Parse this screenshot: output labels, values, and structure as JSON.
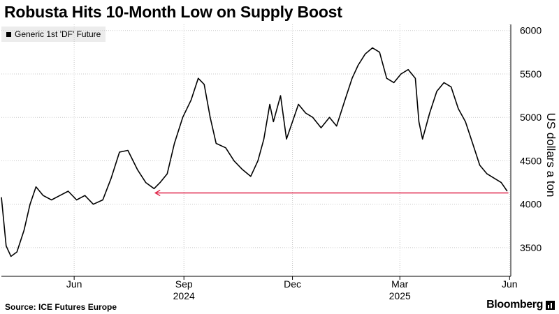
{
  "header": {
    "title": "Robusta Hits 10-Month Low on Supply Boost"
  },
  "footer": {
    "source": "Source: ICE Futures Europe",
    "brand": "Bloomberg",
    "brand_icon": "bloomberg-bars-icon"
  },
  "colors": {
    "price": "#000000",
    "grid": "#c8c8c8",
    "annotation": "#e0274a"
  },
  "chart_data": {
    "type": "line",
    "title": "Robusta Hits 10-Month Low on Supply Boost",
    "ylabel": "US dollars a ton",
    "legend": {
      "placement": "top-left",
      "entries": [
        "Generic 1st 'DF' Future"
      ]
    },
    "ylim": [
      3170,
      6070
    ],
    "xlim": [
      "2024-04-01",
      "2025-06-02"
    ],
    "y_ticks": [
      3500,
      4000,
      4500,
      5000,
      5500,
      6000
    ],
    "x_ticks": [
      {
        "date": "2024-06-01",
        "label": "Jun"
      },
      {
        "date": "2024-09-01",
        "label": "Sep"
      },
      {
        "date": "2024-12-01",
        "label": "Dec"
      },
      {
        "date": "2025-03-01",
        "label": "Mar"
      },
      {
        "date": "2025-06-01",
        "label": "Jun"
      }
    ],
    "year_labels": [
      {
        "date": "2024-09-01",
        "label": "2024"
      },
      {
        "date": "2025-03-01",
        "label": "2025"
      }
    ],
    "grid": true,
    "series": [
      {
        "name": "Generic 1st 'DF' Future",
        "points": [
          [
            "2024-04-01",
            4080
          ],
          [
            "2024-04-05",
            3520
          ],
          [
            "2024-04-09",
            3400
          ],
          [
            "2024-04-14",
            3450
          ],
          [
            "2024-04-20",
            3700
          ],
          [
            "2024-04-25",
            4000
          ],
          [
            "2024-04-30",
            4200
          ],
          [
            "2024-05-06",
            4100
          ],
          [
            "2024-05-13",
            4050
          ],
          [
            "2024-05-20",
            4100
          ],
          [
            "2024-05-27",
            4150
          ],
          [
            "2024-06-03",
            4050
          ],
          [
            "2024-06-10",
            4100
          ],
          [
            "2024-06-17",
            4000
          ],
          [
            "2024-06-25",
            4050
          ],
          [
            "2024-07-02",
            4300
          ],
          [
            "2024-07-09",
            4600
          ],
          [
            "2024-07-16",
            4620
          ],
          [
            "2024-07-24",
            4400
          ],
          [
            "2024-07-31",
            4250
          ],
          [
            "2024-08-07",
            4180
          ],
          [
            "2024-08-12",
            4250
          ],
          [
            "2024-08-18",
            4350
          ],
          [
            "2024-08-24",
            4700
          ],
          [
            "2024-08-31",
            5000
          ],
          [
            "2024-09-07",
            5200
          ],
          [
            "2024-09-13",
            5450
          ],
          [
            "2024-09-18",
            5380
          ],
          [
            "2024-09-23",
            5000
          ],
          [
            "2024-09-28",
            4700
          ],
          [
            "2024-10-06",
            4650
          ],
          [
            "2024-10-13",
            4500
          ],
          [
            "2024-10-20",
            4400
          ],
          [
            "2024-10-27",
            4320
          ],
          [
            "2024-11-02",
            4500
          ],
          [
            "2024-11-07",
            4750
          ],
          [
            "2024-11-12",
            5150
          ],
          [
            "2024-11-15",
            4950
          ],
          [
            "2024-11-21",
            5250
          ],
          [
            "2024-11-26",
            4750
          ],
          [
            "2024-12-01",
            4950
          ],
          [
            "2024-12-06",
            5150
          ],
          [
            "2024-12-12",
            5050
          ],
          [
            "2024-12-18",
            5000
          ],
          [
            "2024-12-25",
            4880
          ],
          [
            "2025-01-01",
            5000
          ],
          [
            "2025-01-07",
            4900
          ],
          [
            "2025-01-14",
            5200
          ],
          [
            "2025-01-20",
            5450
          ],
          [
            "2025-01-25",
            5600
          ],
          [
            "2025-01-31",
            5730
          ],
          [
            "2025-02-06",
            5800
          ],
          [
            "2025-02-12",
            5750
          ],
          [
            "2025-02-18",
            5450
          ],
          [
            "2025-02-24",
            5400
          ],
          [
            "2025-03-02",
            5500
          ],
          [
            "2025-03-08",
            5550
          ],
          [
            "2025-03-14",
            5450
          ],
          [
            "2025-03-17",
            4950
          ],
          [
            "2025-03-20",
            4750
          ],
          [
            "2025-03-26",
            5050
          ],
          [
            "2025-04-01",
            5300
          ],
          [
            "2025-04-07",
            5400
          ],
          [
            "2025-04-13",
            5350
          ],
          [
            "2025-04-19",
            5100
          ],
          [
            "2025-04-25",
            4950
          ],
          [
            "2025-05-01",
            4700
          ],
          [
            "2025-05-07",
            4450
          ],
          [
            "2025-05-13",
            4350
          ],
          [
            "2025-05-19",
            4300
          ],
          [
            "2025-05-25",
            4250
          ],
          [
            "2025-05-30",
            4150
          ]
        ]
      }
    ],
    "annotations": [
      {
        "type": "arrow",
        "y": 4130,
        "from": "2025-05-31",
        "to": "2024-08-08",
        "color": "#e0274a"
      }
    ]
  }
}
